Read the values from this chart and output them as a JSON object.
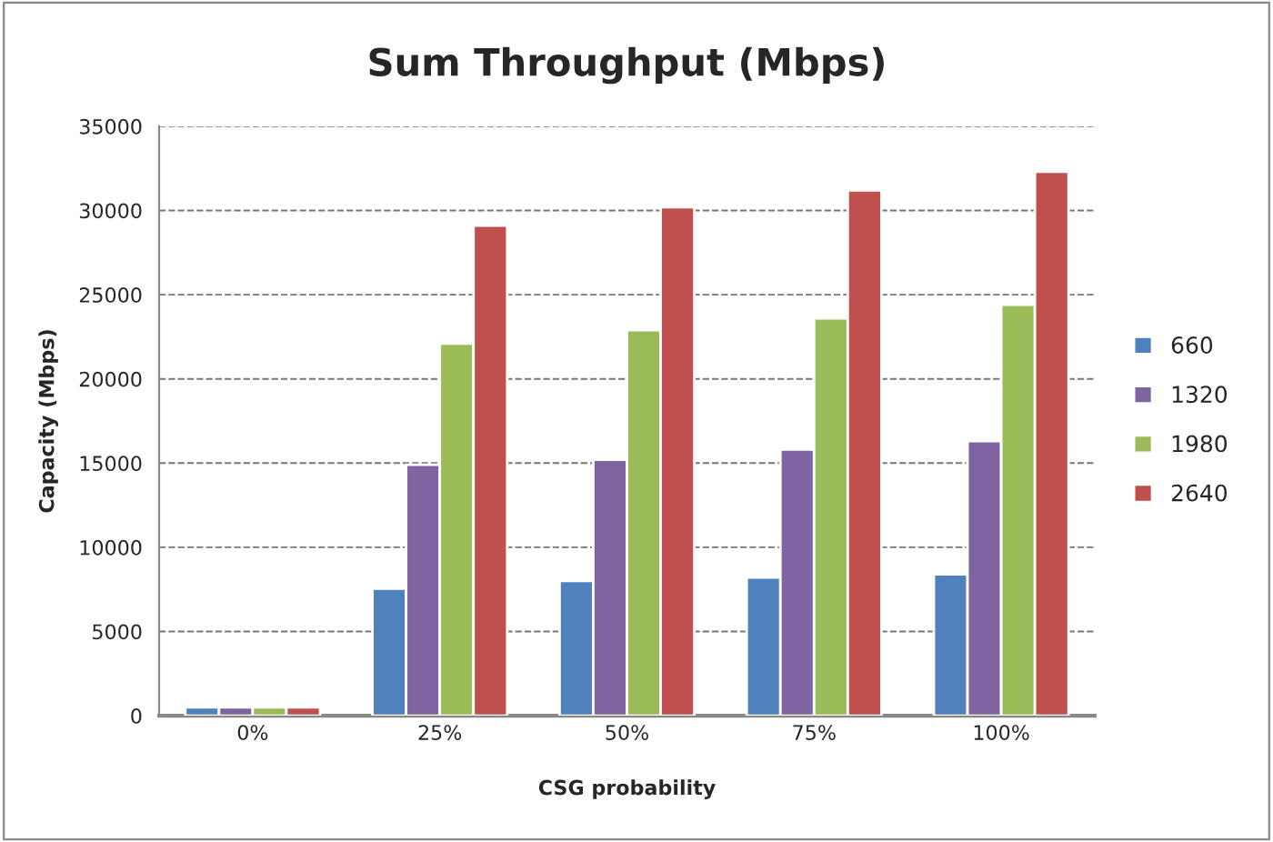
{
  "chart_data": {
    "type": "bar",
    "title": "Sum Throughput (Mbps)",
    "xlabel": "CSG probability",
    "ylabel": "Capacity (Mbps)",
    "categories": [
      "0%",
      "25%",
      "50%",
      "75%",
      "100%"
    ],
    "series": [
      {
        "name": "660",
        "color": "#4f81bd",
        "values": [
          500,
          7550,
          8000,
          8200,
          8400
        ]
      },
      {
        "name": "1320",
        "color": "#8064a2",
        "values": [
          500,
          14900,
          15200,
          15800,
          16300
        ]
      },
      {
        "name": "1980",
        "color": "#9bbb59",
        "values": [
          500,
          22100,
          22900,
          23600,
          24400
        ]
      },
      {
        "name": "2640",
        "color": "#c0504d",
        "values": [
          500,
          29100,
          30200,
          31200,
          32300
        ]
      }
    ],
    "ylim": [
      0,
      35000
    ],
    "yticks": [
      0,
      5000,
      10000,
      15000,
      20000,
      25000,
      30000,
      35000
    ],
    "grid": "y",
    "legend": "right"
  }
}
